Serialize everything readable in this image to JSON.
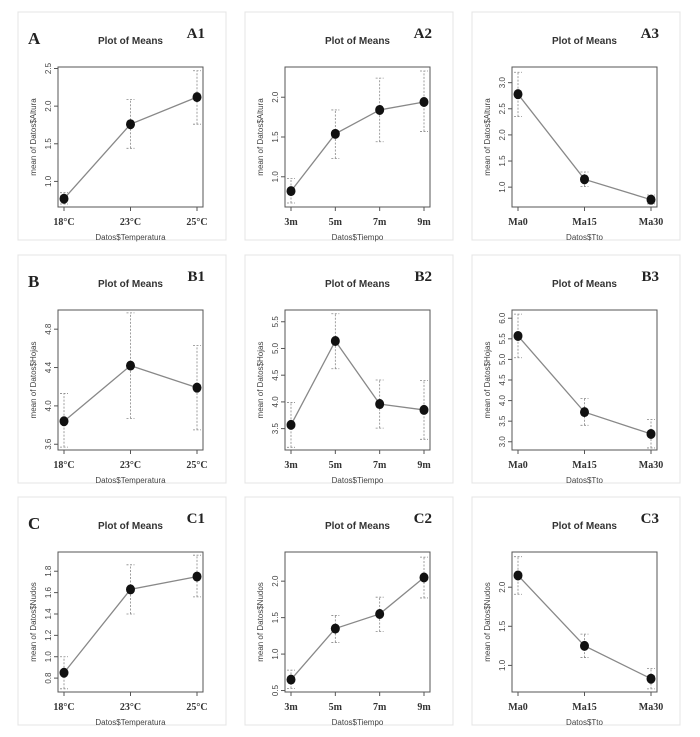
{
  "chart_data": [
    {
      "panel": "A1",
      "row_label": "A",
      "type": "line",
      "title": "Plot of Means",
      "xlabel": "Datos$Temperatura",
      "ylabel": "mean of Datos$Altura",
      "categories": [
        "18°C",
        "23°C",
        "25°C"
      ],
      "values": [
        0.77,
        1.76,
        2.12
      ],
      "ci_low": [
        0.7,
        1.44,
        1.76
      ],
      "ci_high": [
        0.85,
        2.09,
        2.47
      ],
      "yticks": [
        1.0,
        1.5,
        2.0,
        2.5
      ],
      "ylim": [
        0.66,
        2.52
      ]
    },
    {
      "panel": "A2",
      "row_label": "",
      "type": "line",
      "title": "Plot of Means",
      "xlabel": "Datos$Tiempo",
      "ylabel": "mean of Datos$Altura",
      "categories": [
        "3m",
        "5m",
        "7m",
        "9m"
      ],
      "values": [
        0.82,
        1.54,
        1.84,
        1.94
      ],
      "ci_low": [
        0.67,
        1.23,
        1.44,
        1.57
      ],
      "ci_high": [
        0.98,
        1.84,
        2.24,
        2.33
      ],
      "yticks": [
        1.0,
        1.5,
        2.0
      ],
      "ylim": [
        0.62,
        2.38
      ]
    },
    {
      "panel": "A3",
      "row_label": "",
      "type": "line",
      "title": "Plot of Means",
      "xlabel": "Datos$Tto",
      "ylabel": "mean of Datos$Altura",
      "categories": [
        "Ma0",
        "Ma15",
        "Ma30"
      ],
      "values": [
        2.78,
        1.15,
        0.76
      ],
      "ci_low": [
        2.35,
        1.01,
        0.68
      ],
      "ci_high": [
        3.2,
        1.29,
        0.85
      ],
      "yticks": [
        1.0,
        1.5,
        2.0,
        2.5,
        3.0
      ],
      "ylim": [
        0.62,
        3.3
      ]
    },
    {
      "panel": "B1",
      "row_label": "B",
      "type": "line",
      "title": "Plot of Means",
      "xlabel": "Datos$Temperatura",
      "ylabel": "mean of Datos$Hojas",
      "categories": [
        "18°C",
        "23°C",
        "25°C"
      ],
      "values": [
        3.84,
        4.42,
        4.19
      ],
      "ci_low": [
        3.57,
        3.87,
        3.75
      ],
      "ci_high": [
        4.13,
        4.97,
        4.63
      ],
      "yticks": [
        3.6,
        4.0,
        4.4,
        4.8
      ],
      "ylim": [
        3.54,
        5.0
      ]
    },
    {
      "panel": "B2",
      "row_label": "",
      "type": "line",
      "title": "Plot of Means",
      "xlabel": "Datos$Tiempo",
      "ylabel": "mean of Datos$Hojas",
      "categories": [
        "3m",
        "5m",
        "7m",
        "9m"
      ],
      "values": [
        3.57,
        5.14,
        3.96,
        3.85
      ],
      "ci_low": [
        3.15,
        4.62,
        3.51,
        3.3
      ],
      "ci_high": [
        3.99,
        5.65,
        4.41,
        4.4
      ],
      "yticks": [
        3.5,
        4.0,
        4.5,
        5.0,
        5.5
      ],
      "ylim": [
        3.1,
        5.72
      ]
    },
    {
      "panel": "B3",
      "row_label": "",
      "type": "line",
      "title": "Plot of Means",
      "xlabel": "Datos$Tto",
      "ylabel": "mean of Datos$Hojas",
      "categories": [
        "Ma0",
        "Ma15",
        "Ma30"
      ],
      "values": [
        5.57,
        3.72,
        3.19
      ],
      "ci_low": [
        5.04,
        3.4,
        2.85
      ],
      "ci_high": [
        6.1,
        4.05,
        3.54
      ],
      "yticks": [
        3.0,
        3.5,
        4.0,
        4.5,
        5.0,
        5.5,
        6.0
      ],
      "ylim": [
        2.8,
        6.2
      ]
    },
    {
      "panel": "C1",
      "row_label": "C",
      "type": "line",
      "title": "Plot of Means",
      "xlabel": "Datos$Temperatura",
      "ylabel": "mean of Datos$Nudos",
      "categories": [
        "18°C",
        "23°C",
        "25°C"
      ],
      "values": [
        0.85,
        1.63,
        1.75
      ],
      "ci_low": [
        0.7,
        1.4,
        1.56
      ],
      "ci_high": [
        1.0,
        1.86,
        1.95
      ],
      "yticks": [
        0.8,
        1.0,
        1.2,
        1.4,
        1.6,
        1.8
      ],
      "ylim": [
        0.67,
        1.98
      ]
    },
    {
      "panel": "C2",
      "row_label": "",
      "type": "line",
      "title": "Plot of Means",
      "xlabel": "Datos$Tiempo",
      "ylabel": "mean of Datos$Nudos",
      "categories": [
        "3m",
        "5m",
        "7m",
        "9m"
      ],
      "values": [
        0.65,
        1.35,
        1.55,
        2.05
      ],
      "ci_low": [
        0.53,
        1.16,
        1.31,
        1.77
      ],
      "ci_high": [
        0.78,
        1.53,
        1.78,
        2.33
      ],
      "yticks": [
        0.5,
        1.0,
        1.5,
        2.0
      ],
      "ylim": [
        0.48,
        2.4
      ]
    },
    {
      "panel": "C3",
      "row_label": "",
      "type": "line",
      "title": "Plot of Means",
      "xlabel": "Datos$Tto",
      "ylabel": "mean of Datos$Nudos",
      "categories": [
        "Ma0",
        "Ma15",
        "Ma30"
      ],
      "values": [
        2.15,
        1.25,
        0.83
      ],
      "ci_low": [
        1.91,
        1.1,
        0.7
      ],
      "ci_high": [
        2.39,
        1.4,
        0.96
      ],
      "yticks": [
        1.0,
        1.5,
        2.0
      ],
      "ylim": [
        0.66,
        2.45
      ]
    }
  ]
}
